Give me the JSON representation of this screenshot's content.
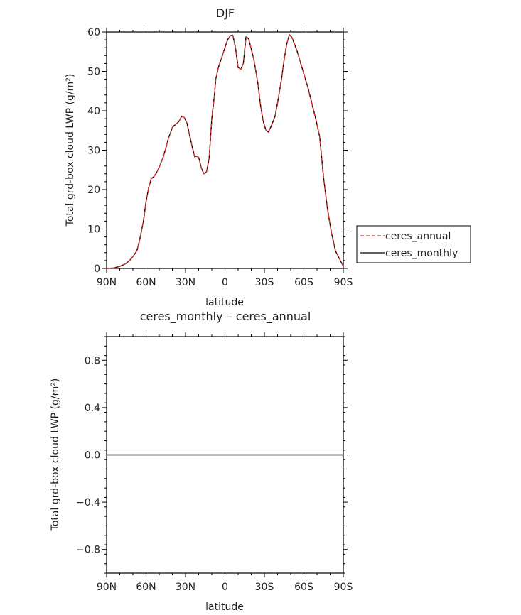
{
  "chart_data": [
    {
      "type": "line",
      "title": "DJF",
      "xlabel": "latitude",
      "ylabel": "Total grd-box cloud LWP (g/m²)",
      "xlim": [
        90,
        -90
      ],
      "ylim": [
        0,
        60
      ],
      "x_tick_values": [
        90,
        60,
        30,
        0,
        -30,
        -60,
        -90
      ],
      "x_tick_labels": [
        "90N",
        "60N",
        "30N",
        "0",
        "30S",
        "60S",
        "90S"
      ],
      "y_tick_values": [
        0,
        10,
        20,
        30,
        40,
        50,
        60
      ],
      "y_tick_labels": [
        "0",
        "10",
        "20",
        "30",
        "40",
        "50",
        "60"
      ],
      "legend_position": "right",
      "x": [
        90,
        85,
        80,
        75,
        72,
        70,
        67,
        65,
        62,
        60,
        58,
        56,
        54,
        52,
        50,
        47,
        45,
        43,
        40,
        37,
        35,
        33,
        31,
        29,
        27,
        25,
        23,
        22,
        20,
        18,
        16,
        14,
        12,
        11,
        10,
        8,
        7,
        5,
        3,
        1,
        -2,
        -4,
        -6,
        -8,
        -10,
        -12,
        -14,
        -16,
        -18,
        -22,
        -25,
        -27,
        -29,
        -31,
        -33,
        -35,
        -38,
        -40,
        -43,
        -45,
        -47,
        -49,
        -51,
        -55,
        -59,
        -63,
        -66,
        -69,
        -72,
        -75,
        -78,
        -81,
        -84,
        -87,
        -90
      ],
      "series": [
        {
          "name": "ceres_annual",
          "color": "#e8312a",
          "dash": "dashed",
          "values": [
            0,
            0.1,
            0.5,
            1.3,
            2.2,
            3,
            4.5,
            7,
            12,
            17,
            20.5,
            22.8,
            23.3,
            24.3,
            25.7,
            28.2,
            30.5,
            33,
            35.8,
            36.7,
            37.3,
            38.6,
            38.3,
            37,
            34,
            31,
            28.3,
            28.5,
            28.2,
            25.5,
            24,
            24.5,
            28,
            33,
            38,
            44,
            48,
            51,
            53,
            55,
            58,
            59,
            59.2,
            56,
            51,
            50.5,
            52,
            58.8,
            58.3,
            53,
            47,
            41.5,
            37.5,
            35.2,
            34.6,
            36,
            38.5,
            42,
            48,
            53,
            57,
            59.3,
            58.6,
            55,
            50.5,
            46,
            42,
            38,
            33.5,
            23,
            15,
            9,
            4.5,
            2.5,
            0.5
          ]
        },
        {
          "name": "ceres_monthly",
          "color": "#000000",
          "dash": "solid",
          "values": [
            0,
            0.1,
            0.5,
            1.3,
            2.2,
            3,
            4.5,
            7,
            12,
            17,
            20.5,
            22.8,
            23.3,
            24.3,
            25.7,
            28.2,
            30.5,
            33,
            35.8,
            36.7,
            37.3,
            38.6,
            38.3,
            37,
            34,
            31,
            28.3,
            28.5,
            28.2,
            25.5,
            24,
            24.5,
            28,
            33,
            38,
            44,
            48,
            51,
            53,
            55,
            58,
            59,
            59.2,
            56,
            51,
            50.5,
            52,
            58.8,
            58.3,
            53,
            47,
            41.5,
            37.5,
            35.2,
            34.6,
            36,
            38.5,
            42,
            48,
            53,
            57,
            59.3,
            58.6,
            55,
            50.5,
            46,
            42,
            38,
            33.5,
            23,
            15,
            9,
            4.5,
            2.5,
            0.5
          ]
        }
      ]
    },
    {
      "type": "line",
      "title": "ceres_monthly – ceres_annual",
      "xlabel": "latitude",
      "ylabel": "Total grd-box cloud LWP (g/m²)",
      "xlim": [
        90,
        -90
      ],
      "ylim": [
        -1,
        1
      ],
      "x_tick_values": [
        90,
        60,
        30,
        0,
        -30,
        -60,
        -90
      ],
      "x_tick_labels": [
        "90N",
        "60N",
        "30N",
        "0",
        "30S",
        "60S",
        "90S"
      ],
      "y_tick_values": [
        -0.8,
        -0.4,
        0.0,
        0.4,
        0.8
      ],
      "y_tick_labels": [
        "−0.8",
        "−0.4",
        "0.0",
        "0.4",
        "0.8"
      ],
      "x": [
        90,
        -90
      ],
      "series": [
        {
          "color": "#000000",
          "values": [
            0,
            0
          ]
        }
      ]
    }
  ]
}
